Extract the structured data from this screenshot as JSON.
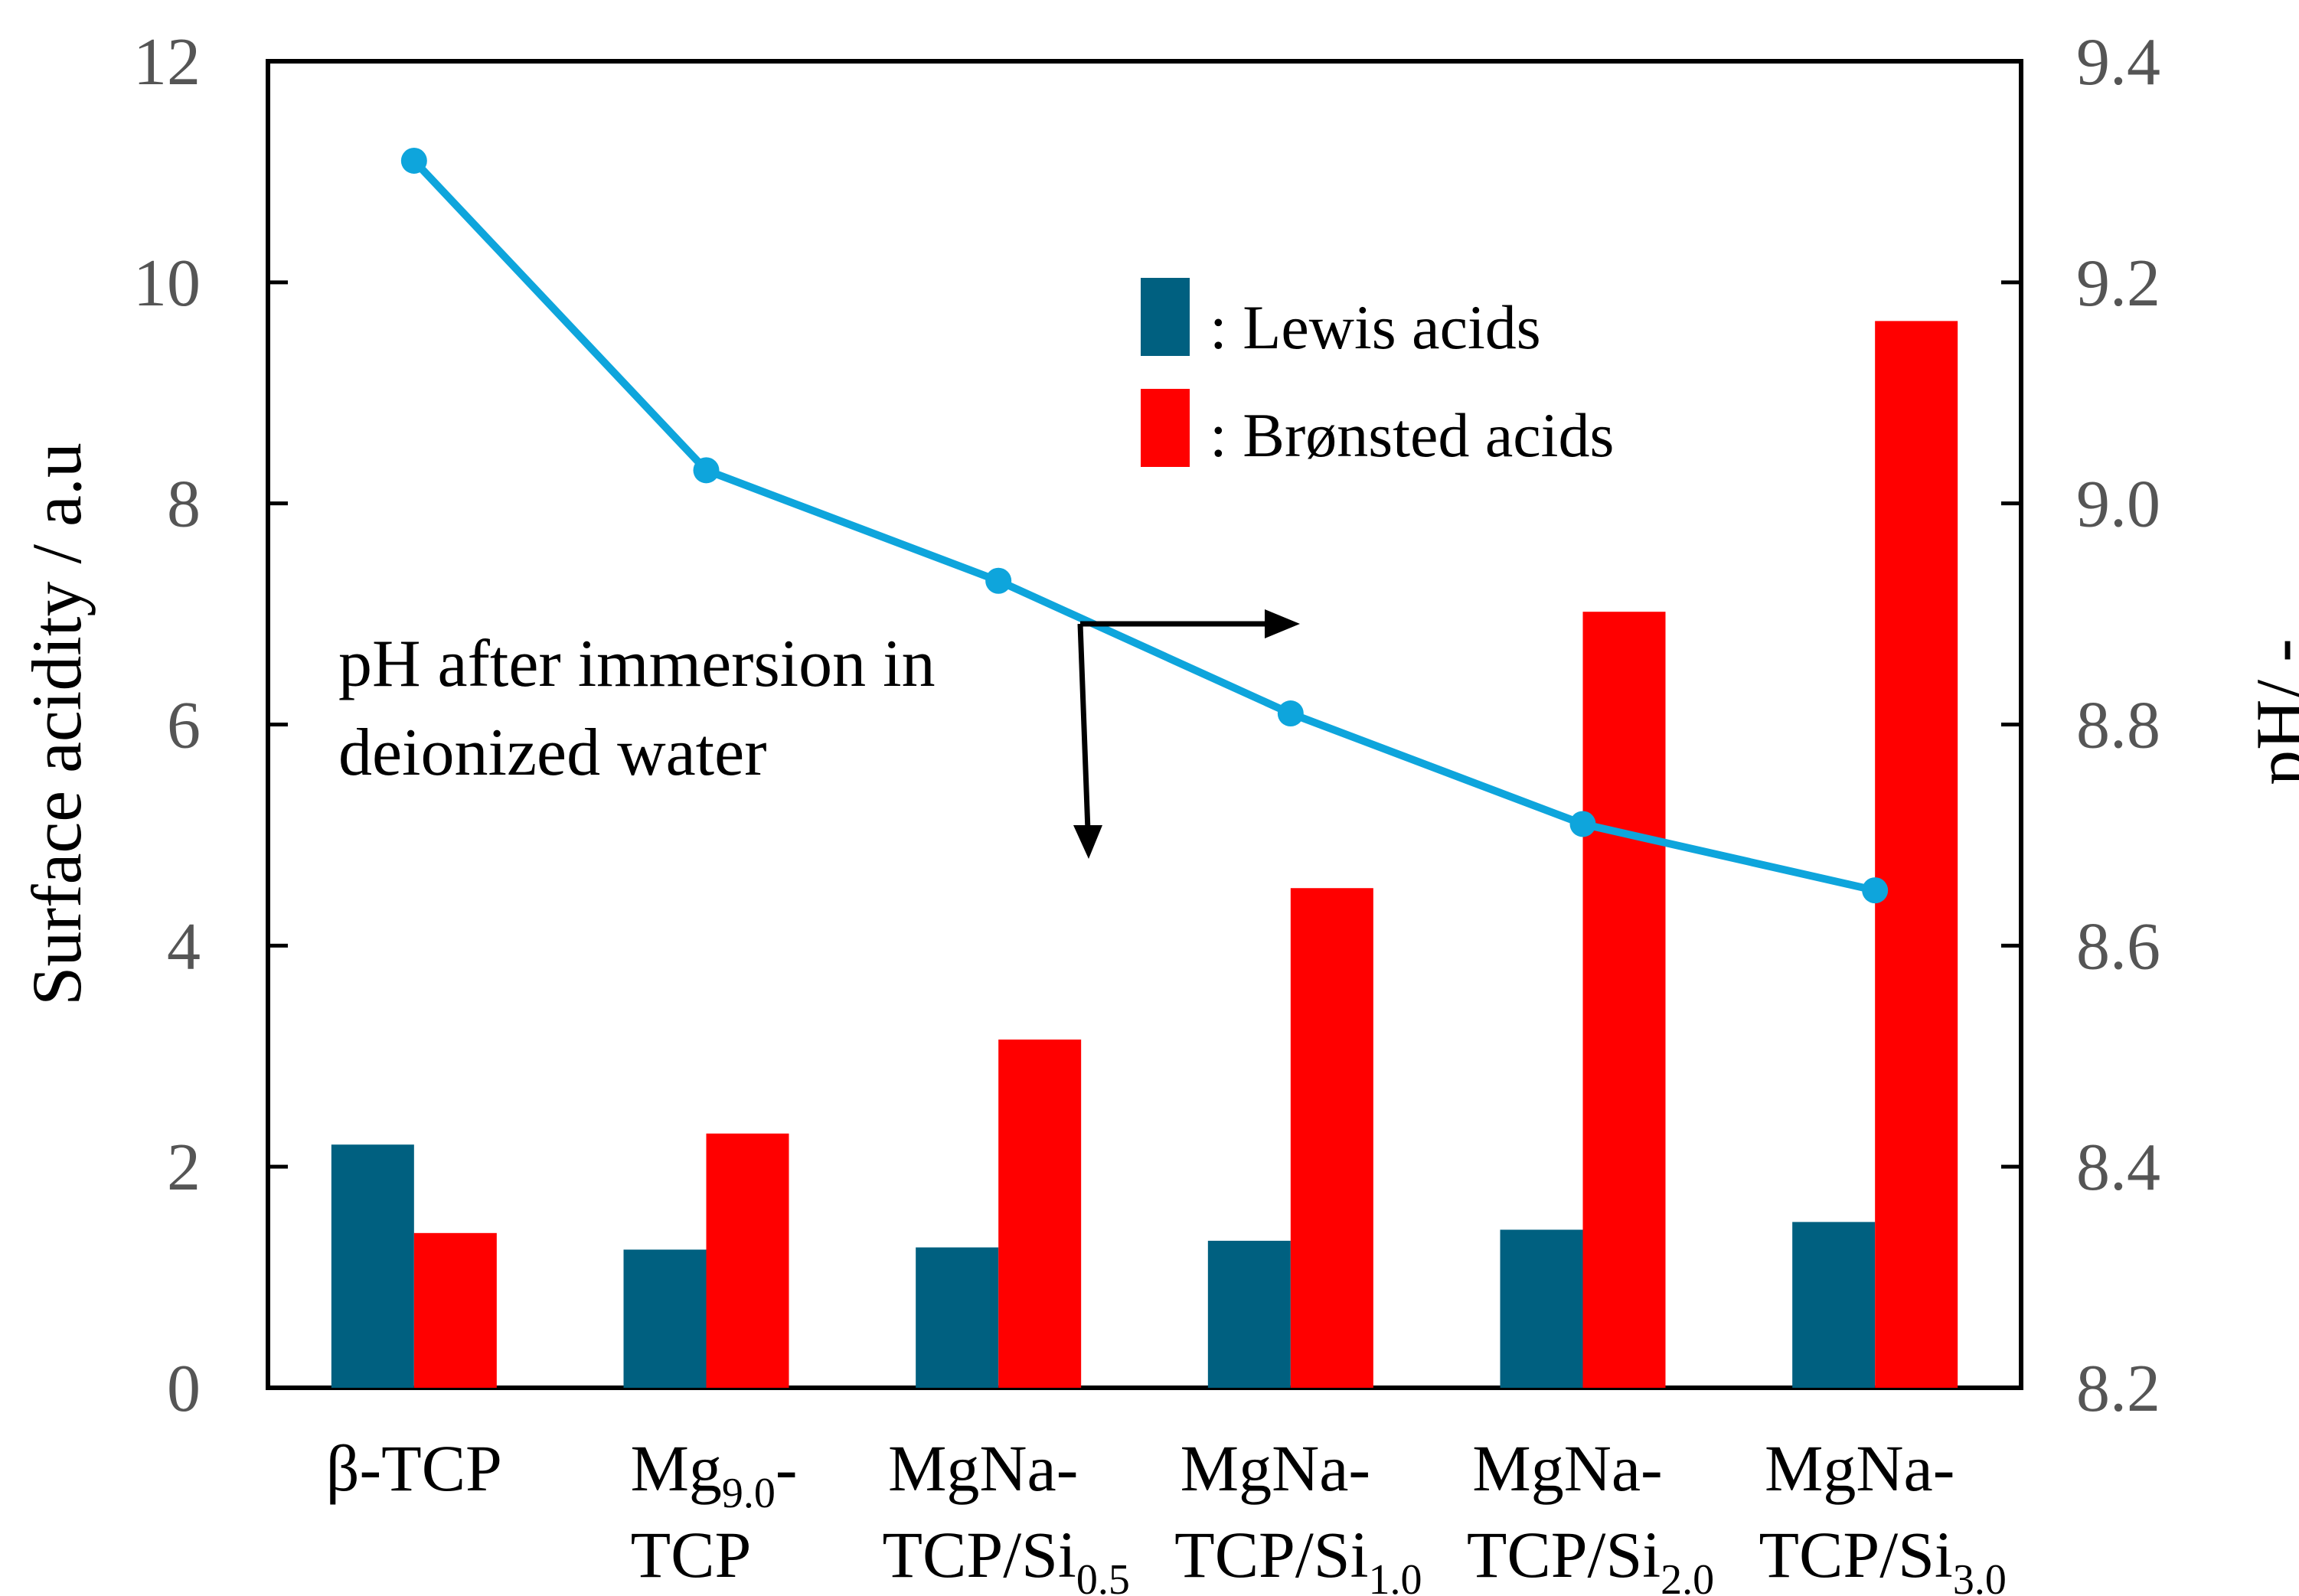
{
  "chart_data": {
    "type": "bar",
    "categories": [
      {
        "main": "β-TCP",
        "line2": "",
        "sub": ""
      },
      {
        "main": "Mg",
        "sub": "9.0",
        "suffix": "-",
        "line2": "TCP"
      },
      {
        "main": "MgNa-",
        "line2": "TCP/Si",
        "sub": "0.5"
      },
      {
        "main": "MgNa-",
        "line2": "TCP/Si",
        "sub": "1.0"
      },
      {
        "main": "MgNa-",
        "line2": "TCP/Si",
        "sub": "2.0"
      },
      {
        "main": "MgNa-",
        "line2": "TCP/Si",
        "sub": "3.0"
      }
    ],
    "series": [
      {
        "name": "Lewis acids",
        "legend_label": ": Lewis acids",
        "color": "#006080",
        "axis": "left",
        "kind": "bar",
        "values": [
          2.2,
          1.25,
          1.27,
          1.33,
          1.43,
          1.5
        ]
      },
      {
        "name": "Brønsted acids",
        "legend_label": ": Brønsted acids",
        "color": "#ff0000",
        "axis": "left",
        "kind": "bar",
        "values": [
          1.4,
          2.3,
          3.15,
          4.52,
          7.02,
          9.65
        ]
      },
      {
        "name": "pH",
        "color": "#0ea5dc",
        "axis": "right",
        "kind": "line",
        "values": [
          9.31,
          9.03,
          8.93,
          8.81,
          8.71,
          8.65
        ]
      }
    ],
    "ylabel_left": "Surface acidity / a.u",
    "ylabel_right": "pH/ -",
    "ylim_left": [
      0,
      12
    ],
    "ylim_right": [
      8.2,
      9.4
    ],
    "yticks_left": [
      "0",
      "2",
      "4",
      "6",
      "8",
      "10",
      "12"
    ],
    "yticks_right": [
      "8.2",
      "8.4",
      "8.6",
      "8.8",
      "9.0",
      "9.2",
      "9.4"
    ],
    "annotation": {
      "line1": "pH after immersion in",
      "line2": "deionized water"
    },
    "legend_position": "top-right"
  }
}
